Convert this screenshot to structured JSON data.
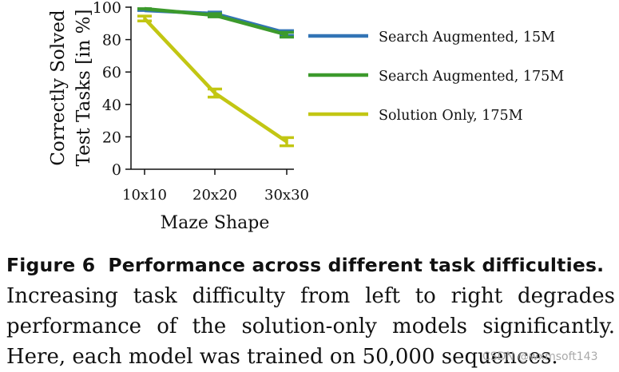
{
  "chart_data": {
    "type": "line",
    "categories": [
      "10x10",
      "20x20",
      "30x30"
    ],
    "series": [
      {
        "name": "Search Augmented, 15M",
        "color": "#3274b5",
        "values": [
          98,
          96,
          84
        ],
        "errors": [
          0,
          1,
          1.5
        ]
      },
      {
        "name": "Search Augmented, 175M",
        "color": "#3c9a2c",
        "values": [
          99,
          95,
          83
        ],
        "errors": [
          0,
          1,
          1.5
        ]
      },
      {
        "name": "Solution Only, 175M",
        "color": "#c2c613",
        "values": [
          93,
          47,
          17
        ],
        "errors": [
          1.5,
          2.5,
          2.5
        ]
      }
    ],
    "xlabel": "Maze Shape",
    "ylabel_line1": "Correctly Solved",
    "ylabel_line2": "Test Tasks [in %]",
    "ylim": [
      0,
      100
    ],
    "yticks": [
      0,
      20,
      40,
      60,
      80,
      100
    ],
    "grid": false,
    "legend_position": "right"
  },
  "caption": {
    "label": "Figure 6",
    "title": "Performance across different task difficulties.",
    "text": "Increasing task difficulty from left to right degrades performance of the solution-only models significantly. Here, each model was trained on 50,000 sequences."
  },
  "watermark": "CSDN @wxmsoft143"
}
